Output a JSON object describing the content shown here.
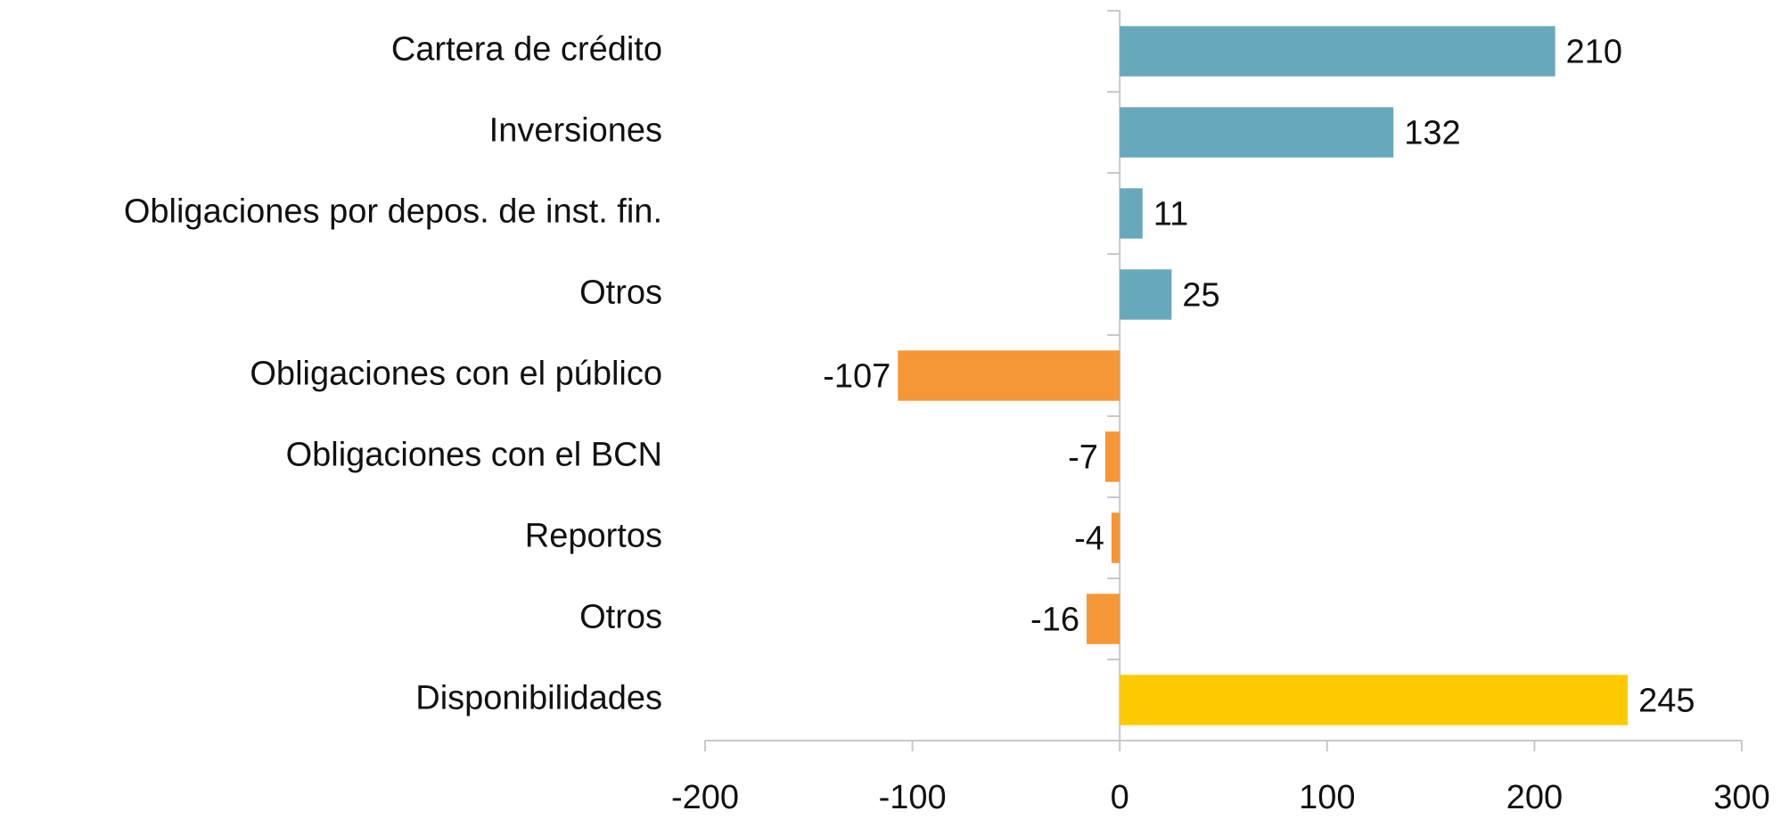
{
  "chart_data": {
    "type": "hbar",
    "categories": [
      "Cartera de crédito",
      "Inversiones",
      "Obligaciones por depos. de inst. fin.",
      "Otros",
      "Obligaciones con el público",
      "Obligaciones con el BCN",
      "Reportos",
      "Otros",
      "Disponibilidades"
    ],
    "values": [
      210,
      132,
      11,
      25,
      -107,
      -7,
      -4,
      -16,
      245
    ],
    "colors": [
      "#68a8bc",
      "#68a8bc",
      "#68a8bc",
      "#68a8bc",
      "#f59637",
      "#f59637",
      "#f59637",
      "#f59637",
      "#fdca02"
    ],
    "xlim": [
      -200,
      300
    ],
    "xticks": [
      -200,
      -100,
      0,
      100,
      200,
      300
    ],
    "grid": false
  }
}
